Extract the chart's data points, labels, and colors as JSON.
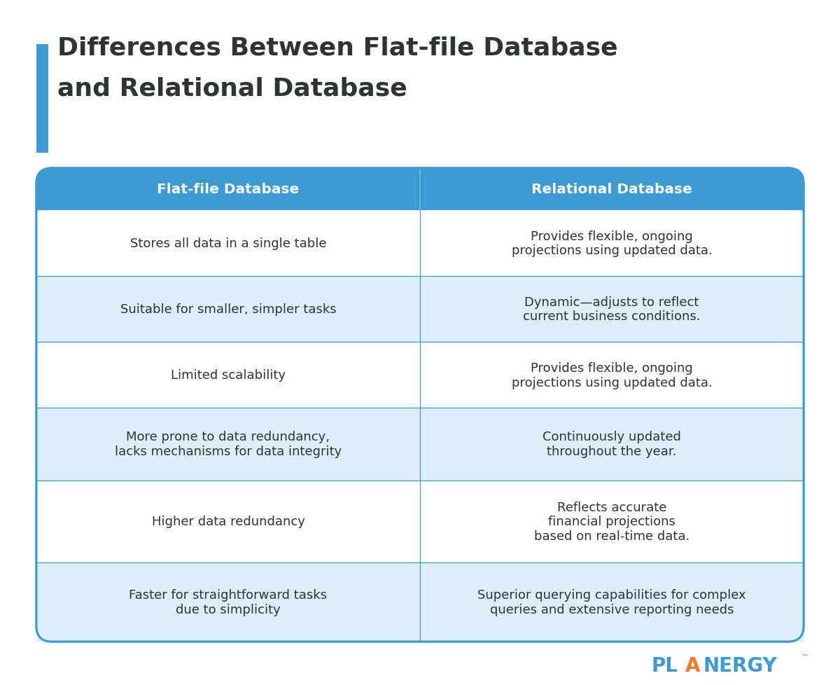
{
  "title_line1": "Differences Between Flat-file Database",
  "title_line2": "and Relational Database",
  "title_color": "#2d3436",
  "title_fontsize": 26,
  "accent_bar_color": "#3d9bd4",
  "header_bg_color": "#3d9bd4",
  "header_text_color": "#ffffff",
  "header_fontsize": 14.5,
  "col1_header": "Flat-file Database",
  "col2_header": "Relational Database",
  "row_bg_white": "#ffffff",
  "row_bg_light": "#ddeef8",
  "border_color": "#3d9bd4",
  "cell_text_color": "#2d3436",
  "cell_fontsize": 13,
  "rows": [
    {
      "col1": "Stores all data in a single table",
      "col2": "Provides flexible, ongoing\nprojections using updated data.",
      "bg": "#ffffff"
    },
    {
      "col1": "Suitable for smaller, simpler tasks",
      "col2": "Dynamic—adjusts to reflect\ncurrent business conditions.",
      "bg": "#ddeef8"
    },
    {
      "col1": "Limited scalability",
      "col2": "Provides flexible, ongoing\nprojections using updated data.",
      "bg": "#ffffff"
    },
    {
      "col1": "More prone to data redundancy,\nlacks mechanisms for data integrity",
      "col2": "Continuously updated\nthroughout the year.",
      "bg": "#ddeef8"
    },
    {
      "col1": "Higher data redundancy",
      "col2": "Reflects accurate\nfinancial projections\nbased on real-time data.",
      "bg": "#ffffff"
    },
    {
      "col1": "Faster for straightforward tasks\ndue to simplicity",
      "col2": "Superior querying capabilities for complex\nqueries and extensive reporting needs",
      "bg": "#ddeef8"
    }
  ],
  "planergy_blue": "#3d9bd4",
  "planergy_orange": "#f47920",
  "planergy_fontsize": 20,
  "bg_color": "#ffffff",
  "fig_width": 12.0,
  "fig_height": 9.79,
  "dpi": 100
}
